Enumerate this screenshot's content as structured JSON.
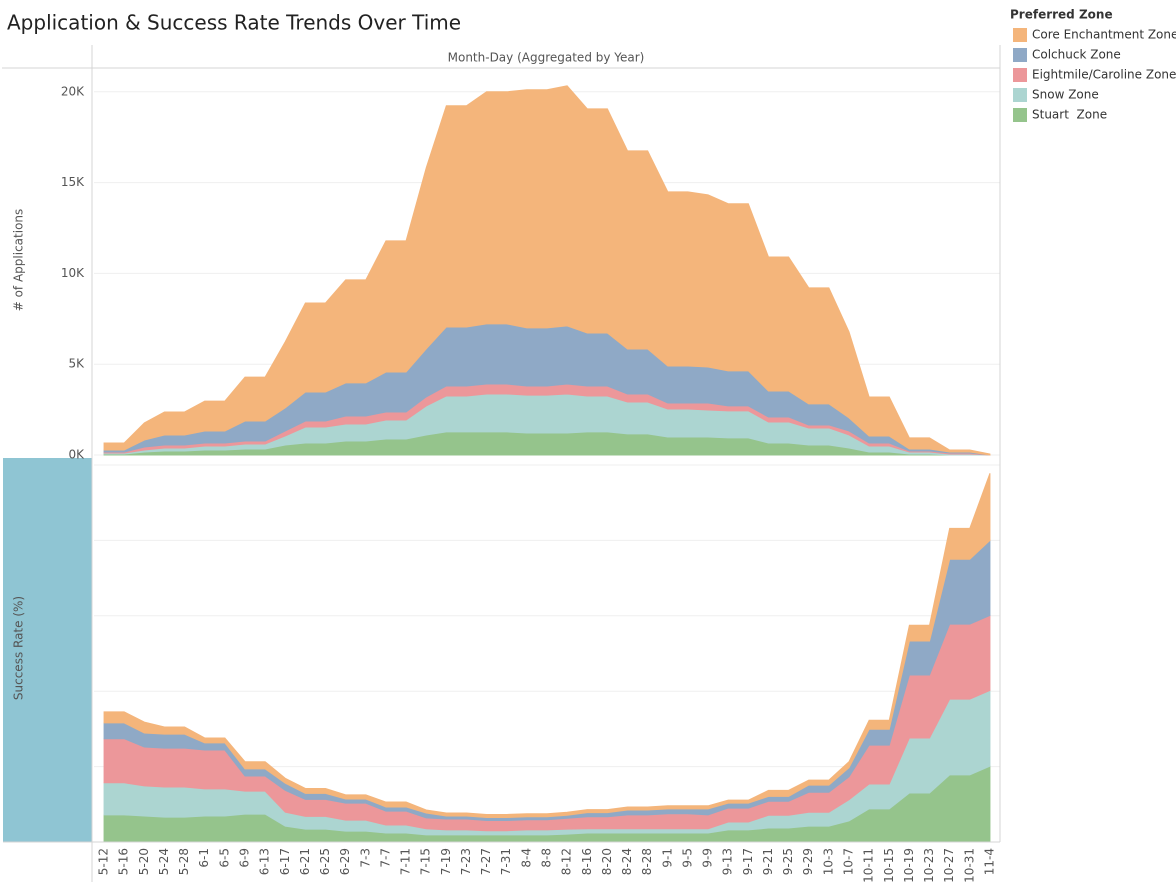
{
  "title": "Application & Success Rate Trends Over Time",
  "legend_title": "Preferred Zone",
  "chart_data": [
    {
      "type": "area",
      "stacked": true,
      "x_label": "Month-Day (Aggregated by Year)",
      "y_label": "# of Applications",
      "ylim": [
        0,
        21200
      ],
      "yticks": [
        {
          "value": 0,
          "label": "0K"
        },
        {
          "value": 5000,
          "label": "5K"
        },
        {
          "value": 10000,
          "label": "10K"
        },
        {
          "value": 15000,
          "label": "15K"
        },
        {
          "value": 20000,
          "label": "20K"
        }
      ],
      "grid": true,
      "series": [
        {
          "name": "Core Enchantment Zone",
          "color": "#f4b57b",
          "values": [
            385,
            385,
            940,
            1270,
            1270,
            1650,
            1650,
            2420,
            2420,
            3640,
            4900,
            4900,
            5670,
            5670,
            7220,
            7220,
            9970,
            12180,
            12180,
            12780,
            12780,
            13110,
            13110,
            13220,
            12340,
            12340,
            10910,
            10910,
            9590,
            9590,
            9480,
            9200,
            9200,
            7380,
            7380,
            6390,
            6390,
            4740,
            2150,
            2150,
            610,
            610,
            110,
            110,
            55
          ]
        },
        {
          "name": "Colchuck Zone",
          "color": "#8fa9c6",
          "values": [
            110,
            110,
            385,
            550,
            550,
            660,
            660,
            1100,
            1100,
            1270,
            1600,
            1600,
            1820,
            1820,
            2200,
            2200,
            2640,
            3250,
            3250,
            3310,
            3310,
            3200,
            3200,
            3200,
            2920,
            2920,
            2480,
            2480,
            2040,
            2040,
            1980,
            1930,
            1930,
            1430,
            1430,
            1160,
            1160,
            720,
            385,
            385,
            110,
            110,
            55,
            55,
            0
          ]
        },
        {
          "name": "Eightmile/Caroline Zone",
          "color": "#ec979a",
          "values": [
            55,
            55,
            165,
            165,
            165,
            165,
            165,
            165,
            165,
            275,
            330,
            330,
            440,
            440,
            440,
            440,
            500,
            550,
            550,
            550,
            550,
            500,
            500,
            550,
            550,
            550,
            440,
            440,
            330,
            330,
            385,
            275,
            275,
            275,
            275,
            165,
            165,
            220,
            165,
            165,
            55,
            55,
            55,
            55,
            0
          ]
        },
        {
          "name": "Snow Zone",
          "color": "#acd5d1",
          "values": [
            55,
            55,
            110,
            165,
            165,
            220,
            220,
            275,
            275,
            500,
            880,
            880,
            940,
            940,
            1050,
            1050,
            1600,
            1980,
            1980,
            2090,
            2090,
            2090,
            2090,
            2150,
            1980,
            1980,
            1760,
            1760,
            1540,
            1540,
            1490,
            1490,
            1490,
            1160,
            1160,
            940,
            940,
            720,
            330,
            330,
            110,
            110,
            55,
            55,
            0
          ]
        },
        {
          "name": "Stuart  Zone",
          "color": "#95c48c",
          "values": [
            55,
            55,
            165,
            220,
            220,
            275,
            275,
            330,
            330,
            550,
            660,
            660,
            770,
            770,
            880,
            880,
            1100,
            1270,
            1270,
            1270,
            1270,
            1210,
            1210,
            1210,
            1270,
            1270,
            1160,
            1160,
            990,
            990,
            990,
            940,
            940,
            660,
            660,
            550,
            550,
            385,
            165,
            165,
            55,
            55,
            0,
            0,
            0
          ]
        }
      ]
    },
    {
      "type": "area",
      "stacked": true,
      "y_label": "Success Rate (%)",
      "categories": [
        "5-12",
        "5-16",
        "5-20",
        "5-24",
        "5-28",
        "6-1",
        "6-5",
        "6-9",
        "6-13",
        "6-17",
        "6-21",
        "6-25",
        "6-29",
        "7-3",
        "7-7",
        "7-11",
        "7-15",
        "7-19",
        "7-23",
        "7-27",
        "7-31",
        "8-4",
        "8-8",
        "8-12",
        "8-16",
        "8-20",
        "8-24",
        "8-28",
        "9-1",
        "9-5",
        "9-9",
        "9-13",
        "9-17",
        "9-21",
        "9-25",
        "9-29",
        "10-3",
        "10-7",
        "10-11",
        "10-15",
        "10-19",
        "10-23",
        "10-27",
        "10-31",
        "11-4"
      ],
      "ylim": [
        0,
        100
      ],
      "ygrid": [
        20,
        40,
        60,
        80,
        100
      ],
      "grid": true,
      "series": [
        {
          "color": "#f4b57b",
          "values": [
            2.9,
            2.9,
            2.9,
            1.9,
            1.9,
            1.3,
            1.3,
            1.9,
            1.9,
            1.3,
            1.3,
            1.3,
            1.1,
            1.1,
            1.3,
            1.3,
            0.8,
            0.8,
            0.8,
            0.8,
            0.8,
            0.8,
            0.8,
            0.8,
            0.8,
            0.8,
            0.8,
            0.8,
            0.8,
            0.8,
            0.8,
            0.8,
            0.8,
            1.6,
            1.6,
            1.3,
            1.3,
            1.6,
            2.4,
            2.4,
            4.2,
            4.2,
            8.2,
            8.2,
            17.8
          ]
        },
        {
          "color": "#8fa9c6",
          "values": [
            4.2,
            4.2,
            3.7,
            3.7,
            3.7,
            1.9,
            1.9,
            1.9,
            1.9,
            1.9,
            1.6,
            1.6,
            1.1,
            1.1,
            1.1,
            1.1,
            1.3,
            0.8,
            0.8,
            0.8,
            0.8,
            0.8,
            0.8,
            0.8,
            1.1,
            1.1,
            1.3,
            1.3,
            1.3,
            1.3,
            1.6,
            1.3,
            1.3,
            1.3,
            1.3,
            1.9,
            1.9,
            2.4,
            4.2,
            4.2,
            9,
            9,
            17.2,
            17.2,
            19.9
          ]
        },
        {
          "color": "#ec979a",
          "values": [
            11.7,
            11.7,
            10.3,
            10.3,
            10.3,
            10.3,
            10.3,
            4,
            4,
            5.8,
            4.5,
            4.5,
            4.5,
            4.5,
            3.7,
            3.7,
            2.9,
            2.9,
            2.9,
            2.7,
            2.7,
            2.7,
            2.7,
            2.9,
            3.2,
            3.2,
            3.7,
            3.7,
            4,
            4,
            3.7,
            3.7,
            3.7,
            3.7,
            3.7,
            5.3,
            5.3,
            6.1,
            10.3,
            10.3,
            16.7,
            16.7,
            19.9,
            19.9,
            19.9
          ]
        },
        {
          "color": "#acd5d1",
          "values": [
            8.5,
            8.5,
            8,
            8,
            8,
            7.2,
            7.2,
            6.1,
            6.1,
            3.7,
            3.4,
            3.4,
            2.9,
            2.9,
            2.1,
            2.1,
            1.6,
            1.3,
            1.3,
            1.1,
            1.1,
            1.3,
            1.3,
            1.3,
            1.1,
            1.1,
            1.1,
            1.1,
            1.1,
            1.1,
            1.1,
            2.1,
            2.1,
            3.4,
            3.4,
            3.7,
            3.7,
            5.6,
            6.6,
            6.6,
            14.6,
            14.6,
            20.1,
            20.1,
            20.1
          ]
        },
        {
          "color": "#95c48c",
          "values": [
            7.2,
            7.2,
            6.9,
            6.6,
            6.6,
            6.9,
            6.9,
            7.4,
            7.4,
            4.2,
            3.4,
            3.4,
            2.9,
            2.9,
            2.4,
            2.4,
            1.9,
            1.9,
            1.9,
            1.9,
            1.9,
            1.9,
            1.9,
            2.1,
            2.4,
            2.4,
            2.4,
            2.4,
            2.4,
            2.4,
            2.4,
            3.2,
            3.2,
            3.7,
            3.7,
            4.2,
            4.2,
            5.6,
            8.8,
            8.8,
            13,
            13,
            17.8,
            17.8,
            20.1
          ]
        }
      ]
    }
  ]
}
